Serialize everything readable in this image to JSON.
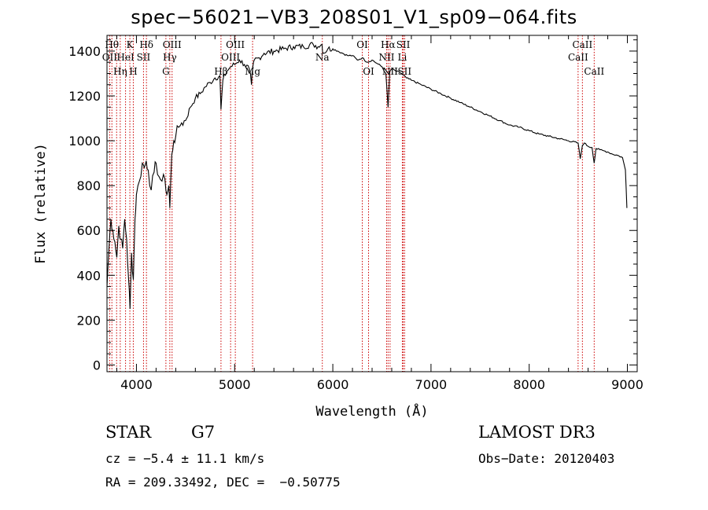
{
  "chart_data": {
    "type": "line",
    "title": "spec−56021−VB3_208S01_V1_sp09−064.fits",
    "xlabel": "Wavelength (Å)",
    "ylabel": "Flux (relative)",
    "xlim": [
      3700,
      9100
    ],
    "ylim": [
      -30,
      1470
    ],
    "xticks": [
      4000,
      5000,
      6000,
      7000,
      8000,
      9000
    ],
    "yticks": [
      0,
      200,
      400,
      600,
      800,
      1000,
      1200,
      1400
    ],
    "series": [
      {
        "name": "spectrum",
        "x": [
          3700,
          3720,
          3740,
          3760,
          3780,
          3800,
          3820,
          3840,
          3860,
          3880,
          3900,
          3920,
          3935,
          3950,
          3968,
          3985,
          4000,
          4030,
          4060,
          4080,
          4100,
          4120,
          4150,
          4180,
          4200,
          4230,
          4260,
          4290,
          4310,
          4330,
          4340,
          4360,
          4380,
          4400,
          4430,
          4460,
          4500,
          4550,
          4600,
          4650,
          4700,
          4750,
          4800,
          4850,
          4861,
          4880,
          4920,
          4960,
          5000,
          5050,
          5100,
          5150,
          5172,
          5183,
          5200,
          5250,
          5300,
          5400,
          5500,
          5600,
          5700,
          5800,
          5850,
          5890,
          5900,
          5950,
          6000,
          6050,
          6100,
          6150,
          6200,
          6250,
          6300,
          6350,
          6400,
          6450,
          6500,
          6540,
          6563,
          6580,
          6600,
          6650,
          6700,
          6750,
          6800,
          6900,
          7000,
          7100,
          7200,
          7300,
          7400,
          7500,
          7600,
          7700,
          7800,
          7900,
          8000,
          8100,
          8200,
          8300,
          8400,
          8498,
          8520,
          8542,
          8560,
          8600,
          8640,
          8662,
          8680,
          8720,
          8760,
          8800,
          8850,
          8900,
          8950,
          8980,
          8995
        ],
        "values": [
          350,
          520,
          650,
          600,
          550,
          480,
          620,
          560,
          520,
          650,
          560,
          380,
          250,
          500,
          380,
          650,
          760,
          820,
          900,
          880,
          910,
          870,
          780,
          860,
          900,
          840,
          820,
          830,
          760,
          800,
          700,
          940,
          1000,
          1020,
          1060,
          1080,
          1090,
          1150,
          1190,
          1210,
          1240,
          1260,
          1280,
          1290,
          1140,
          1270,
          1310,
          1330,
          1340,
          1360,
          1340,
          1320,
          1250,
          1320,
          1360,
          1370,
          1390,
          1400,
          1410,
          1420,
          1420,
          1430,
          1420,
          1430,
          1390,
          1410,
          1410,
          1400,
          1390,
          1380,
          1380,
          1360,
          1370,
          1350,
          1360,
          1345,
          1330,
          1300,
          1150,
          1310,
          1320,
          1310,
          1300,
          1280,
          1270,
          1250,
          1230,
          1210,
          1190,
          1170,
          1150,
          1130,
          1110,
          1090,
          1070,
          1060,
          1045,
          1030,
          1020,
          1010,
          1000,
          990,
          920,
          980,
          990,
          975,
          970,
          900,
          965,
          960,
          955,
          950,
          940,
          935,
          925,
          870,
          700
        ]
      }
    ],
    "lines": [
      {
        "wave": 3727,
        "label": "OII",
        "row": 2
      },
      {
        "wave": 3750,
        "label": "Hθ",
        "row": 1
      },
      {
        "wave": 3798,
        "label": "",
        "row": 0
      },
      {
        "wave": 3835,
        "label": "Hη",
        "row": 3
      },
      {
        "wave": 3889,
        "label": "HeI",
        "row": 2
      },
      {
        "wave": 3933,
        "label": "K",
        "row": 1
      },
      {
        "wave": 3968,
        "label": "H",
        "row": 3
      },
      {
        "wave": 4072,
        "label": "SII",
        "row": 2
      },
      {
        "wave": 4102,
        "label": "Hδ",
        "row": 1
      },
      {
        "wave": 4300,
        "label": "G",
        "row": 3
      },
      {
        "wave": 4340,
        "label": "Hγ",
        "row": 2
      },
      {
        "wave": 4363,
        "label": "OIII",
        "row": 1
      },
      {
        "wave": 4861,
        "label": "Hβ",
        "row": 3
      },
      {
        "wave": 4959,
        "label": "OIII",
        "row": 2
      },
      {
        "wave": 5007,
        "label": "OIII",
        "row": 1
      },
      {
        "wave": 5183,
        "label": "Mg",
        "row": 3
      },
      {
        "wave": 5893,
        "label": "Na",
        "row": 2
      },
      {
        "wave": 6300,
        "label": "OI",
        "row": 1
      },
      {
        "wave": 6364,
        "label": "OI",
        "row": 3
      },
      {
        "wave": 6548,
        "label": "NII",
        "row": 2
      },
      {
        "wave": 6563,
        "label": "Hα",
        "row": 1
      },
      {
        "wave": 6583,
        "label": "NII",
        "row": 3
      },
      {
        "wave": 6708,
        "label": "Li",
        "row": 2
      },
      {
        "wave": 6717,
        "label": "SII",
        "row": 1
      },
      {
        "wave": 6731,
        "label": "SII",
        "row": 3
      },
      {
        "wave": 8498,
        "label": "CaII",
        "row": 2
      },
      {
        "wave": 8542,
        "label": "CaII",
        "row": 1
      },
      {
        "wave": 8662,
        "label": "CaII",
        "row": 3
      }
    ]
  },
  "info": {
    "object_type": "STAR",
    "subclass": "G7",
    "survey": "LAMOST DR3",
    "cz": "cz = −5.4 ± 11.1 km/s",
    "obs_date": "Obs−Date: 20120403",
    "ra_dec": "RA = 209.33492, DEC =  −0.50775"
  },
  "colors": {
    "line_marker": "#cc0000",
    "spectrum": "#000000",
    "axes": "#000000"
  }
}
